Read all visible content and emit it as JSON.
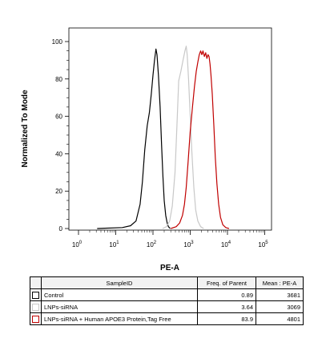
{
  "chart_data": {
    "type": "line",
    "title": "",
    "xlabel": "PE-A",
    "ylabel": "Normalized To Mode",
    "xscale": "biexponential",
    "xlim": [
      -20,
      150000
    ],
    "ylim": [
      0,
      100
    ],
    "y_ticks": [
      "0",
      "20",
      "40",
      "60",
      "80",
      "100"
    ],
    "x_ticks": [
      {
        "base": "10",
        "exp": "0"
      },
      {
        "base": "10",
        "exp": "1"
      },
      {
        "base": "10",
        "exp": "2"
      },
      {
        "base": "10",
        "exp": "3"
      },
      {
        "base": "10",
        "exp": "4"
      },
      {
        "base": "10",
        "exp": "5"
      }
    ],
    "grid": false,
    "series": [
      {
        "name": "Control",
        "color": "#000000",
        "points": [
          [
            5,
            0
          ],
          [
            15,
            0.5
          ],
          [
            25,
            1.5
          ],
          [
            35,
            4
          ],
          [
            45,
            13
          ],
          [
            52,
            25
          ],
          [
            60,
            42
          ],
          [
            70,
            55
          ],
          [
            80,
            62
          ],
          [
            90,
            72
          ],
          [
            100,
            82
          ],
          [
            110,
            90
          ],
          [
            120,
            96
          ],
          [
            128,
            93
          ],
          [
            140,
            82
          ],
          [
            155,
            65
          ],
          [
            170,
            45
          ],
          [
            185,
            28
          ],
          [
            200,
            15
          ],
          [
            220,
            7
          ],
          [
            240,
            3
          ],
          [
            260,
            1
          ],
          [
            290,
            0
          ]
        ]
      },
      {
        "name": "LNPs-siRNA",
        "color": "#c8c8c8",
        "points": [
          [
            180,
            0
          ],
          [
            230,
            1
          ],
          [
            280,
            4
          ],
          [
            330,
            12
          ],
          [
            390,
            30
          ],
          [
            440,
            55
          ],
          [
            490,
            79
          ],
          [
            560,
            84
          ],
          [
            640,
            90
          ],
          [
            720,
            95
          ],
          [
            780,
            97.5
          ],
          [
            830,
            93
          ],
          [
            900,
            80
          ],
          [
            1000,
            60
          ],
          [
            1100,
            42
          ],
          [
            1250,
            22
          ],
          [
            1400,
            10
          ],
          [
            1600,
            4
          ],
          [
            1900,
            1
          ],
          [
            2300,
            0
          ]
        ]
      },
      {
        "name": "LNPs-siRNA + Human APOE3 Protein,Tag Free",
        "color": "#c00000",
        "points": [
          [
            300,
            0
          ],
          [
            420,
            1
          ],
          [
            520,
            3
          ],
          [
            620,
            7
          ],
          [
            700,
            13
          ],
          [
            780,
            22
          ],
          [
            880,
            36
          ],
          [
            1000,
            52
          ],
          [
            1150,
            65
          ],
          [
            1300,
            76
          ],
          [
            1450,
            84
          ],
          [
            1600,
            89
          ],
          [
            1750,
            93
          ],
          [
            1900,
            95
          ],
          [
            2050,
            93
          ],
          [
            2200,
            95
          ],
          [
            2400,
            92
          ],
          [
            2600,
            94
          ],
          [
            2800,
            91
          ],
          [
            3000,
            93
          ],
          [
            3200,
            92
          ],
          [
            3400,
            88
          ],
          [
            3600,
            82
          ],
          [
            3900,
            72
          ],
          [
            4300,
            55
          ],
          [
            4700,
            38
          ],
          [
            5200,
            24
          ],
          [
            5800,
            13
          ],
          [
            6500,
            6
          ],
          [
            7500,
            2
          ],
          [
            9000,
            0.5
          ],
          [
            11000,
            0
          ]
        ]
      }
    ]
  },
  "table": {
    "headers": [
      "",
      "SampleID",
      "Freq. of Parent",
      "Mean : PE-A"
    ],
    "rows": [
      {
        "color": "#000000",
        "sample": "Control",
        "freq": "0.89",
        "mean": "3681"
      },
      {
        "color": "#c8c8c8",
        "sample": "LNPs-siRNA",
        "freq": "3.64",
        "mean": "3069"
      },
      {
        "color": "#c00000",
        "sample": "LNPs-siRNA + Human APOE3 Protein,Tag Free",
        "freq": "83.9",
        "mean": "4801"
      }
    ]
  }
}
